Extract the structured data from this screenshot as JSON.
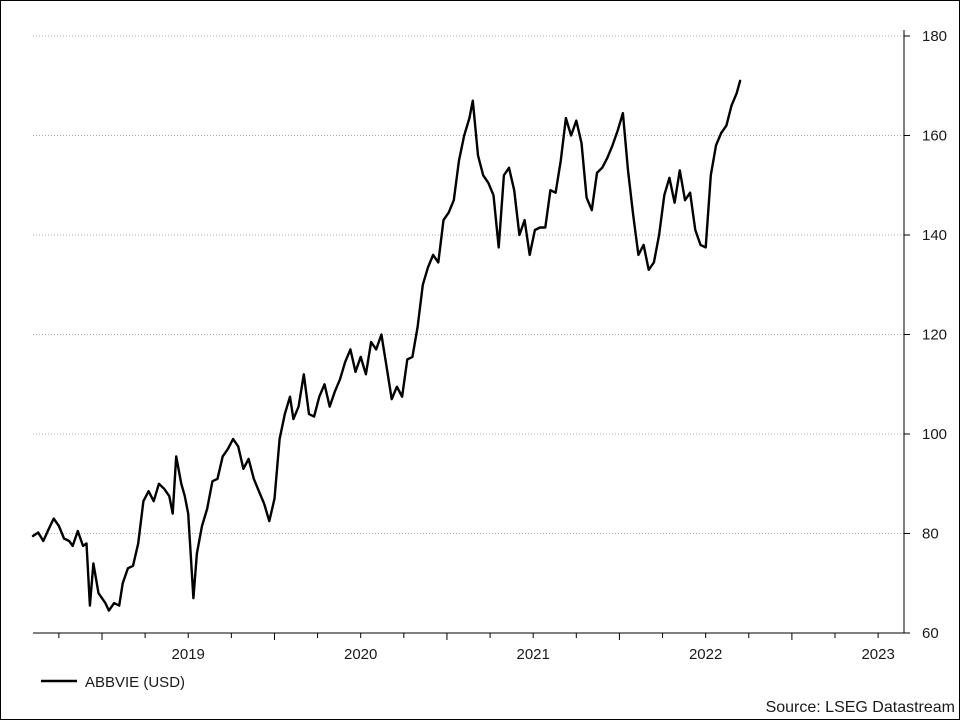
{
  "chart_data": {
    "type": "line",
    "title": "",
    "xlabel": "",
    "ylabel": "",
    "ylim": [
      60,
      180
    ],
    "yticks": [
      60,
      80,
      100,
      120,
      140,
      160,
      180
    ],
    "xlim": [
      2018.6,
      2023.65
    ],
    "year_labels": [
      {
        "label": "2019",
        "x": 2019.0
      },
      {
        "label": "2020",
        "x": 2020.0
      },
      {
        "label": "2021",
        "x": 2021.0
      },
      {
        "label": "2022",
        "x": 2022.0
      },
      {
        "label": "2023",
        "x": 2023.0
      }
    ],
    "grid": true,
    "legend": {
      "placement": "bottom-left"
    },
    "source": "Source: LSEG Datastream",
    "series": [
      {
        "name": "ABBVIE (USD)",
        "color": "#000000",
        "points": [
          [
            2018.6,
            79.5
          ],
          [
            2018.63,
            80.2
          ],
          [
            2018.66,
            78.5
          ],
          [
            2018.69,
            80.8
          ],
          [
            2018.72,
            83.0
          ],
          [
            2018.75,
            81.5
          ],
          [
            2018.78,
            79.0
          ],
          [
            2018.81,
            78.5
          ],
          [
            2018.83,
            77.5
          ],
          [
            2018.86,
            80.5
          ],
          [
            2018.89,
            77.5
          ],
          [
            2018.91,
            78.0
          ],
          [
            2018.93,
            65.5
          ],
          [
            2018.95,
            74.0
          ],
          [
            2018.98,
            68.0
          ],
          [
            2019.02,
            66.0
          ],
          [
            2019.04,
            64.5
          ],
          [
            2019.07,
            66.0
          ],
          [
            2019.1,
            65.5
          ],
          [
            2019.12,
            70.0
          ],
          [
            2019.15,
            73.0
          ],
          [
            2019.18,
            73.5
          ],
          [
            2019.21,
            78.0
          ],
          [
            2019.24,
            86.5
          ],
          [
            2019.27,
            88.5
          ],
          [
            2019.3,
            86.5
          ],
          [
            2019.33,
            90.0
          ],
          [
            2019.36,
            89.0
          ],
          [
            2019.39,
            87.5
          ],
          [
            2019.41,
            84.0
          ],
          [
            2019.43,
            95.5
          ],
          [
            2019.46,
            90.0
          ],
          [
            2019.48,
            87.5
          ],
          [
            2019.5,
            84.0
          ],
          [
            2019.53,
            67.0
          ],
          [
            2019.55,
            76.0
          ],
          [
            2019.58,
            81.5
          ],
          [
            2019.61,
            85.0
          ],
          [
            2019.64,
            90.5
          ],
          [
            2019.67,
            91.0
          ],
          [
            2019.7,
            95.5
          ],
          [
            2019.73,
            97.0
          ],
          [
            2019.76,
            99.0
          ],
          [
            2019.79,
            97.5
          ],
          [
            2019.82,
            93.0
          ],
          [
            2019.85,
            95.0
          ],
          [
            2019.88,
            91.0
          ],
          [
            2019.91,
            88.5
          ],
          [
            2019.94,
            86.0
          ],
          [
            2019.97,
            82.5
          ],
          [
            2020.0,
            87.0
          ],
          [
            2020.03,
            99.0
          ],
          [
            2020.06,
            104.0
          ],
          [
            2020.09,
            107.5
          ],
          [
            2020.11,
            103.0
          ],
          [
            2020.14,
            105.5
          ],
          [
            2020.17,
            112.0
          ],
          [
            2020.2,
            104.0
          ],
          [
            2020.23,
            103.5
          ],
          [
            2020.26,
            107.5
          ],
          [
            2020.29,
            110.0
          ],
          [
            2020.32,
            105.5
          ],
          [
            2020.35,
            108.5
          ],
          [
            2020.38,
            111.0
          ],
          [
            2020.41,
            114.5
          ],
          [
            2020.44,
            117.0
          ],
          [
            2020.47,
            112.5
          ],
          [
            2020.5,
            115.5
          ],
          [
            2020.53,
            112.0
          ],
          [
            2020.56,
            118.5
          ],
          [
            2020.59,
            117.0
          ],
          [
            2020.62,
            120.0
          ],
          [
            2020.65,
            113.5
          ],
          [
            2020.68,
            107.0
          ],
          [
            2020.71,
            109.5
          ],
          [
            2020.74,
            107.5
          ],
          [
            2020.77,
            115.0
          ],
          [
            2020.8,
            115.5
          ],
          [
            2020.83,
            121.5
          ],
          [
            2020.86,
            130.0
          ],
          [
            2020.89,
            133.5
          ],
          [
            2020.92,
            136.0
          ],
          [
            2020.95,
            134.5
          ],
          [
            2020.98,
            143.0
          ],
          [
            2021.01,
            144.5
          ],
          [
            2021.04,
            147.0
          ],
          [
            2021.07,
            155.0
          ],
          [
            2021.1,
            160.0
          ],
          [
            2021.13,
            163.5
          ],
          [
            2021.15,
            167.0
          ],
          [
            2021.18,
            156.0
          ],
          [
            2021.21,
            152.0
          ],
          [
            2021.24,
            150.5
          ],
          [
            2021.27,
            148.0
          ],
          [
            2021.3,
            137.5
          ],
          [
            2021.33,
            152.0
          ],
          [
            2021.36,
            153.5
          ],
          [
            2021.39,
            149.0
          ],
          [
            2021.42,
            140.0
          ],
          [
            2021.45,
            143.0
          ],
          [
            2021.48,
            136.0
          ],
          [
            2021.51,
            141.0
          ],
          [
            2021.54,
            141.5
          ],
          [
            2021.57,
            141.5
          ],
          [
            2021.6,
            149.0
          ],
          [
            2021.63,
            148.5
          ],
          [
            2021.66,
            155.0
          ],
          [
            2021.69,
            163.5
          ],
          [
            2021.72,
            160.0
          ],
          [
            2021.75,
            163.0
          ],
          [
            2021.78,
            158.5
          ],
          [
            2021.81,
            147.5
          ],
          [
            2021.84,
            145.0
          ],
          [
            2021.87,
            152.5
          ],
          [
            2021.9,
            153.5
          ],
          [
            2021.93,
            155.5
          ],
          [
            2021.96,
            158.0
          ],
          [
            2021.99,
            161.0
          ],
          [
            2022.02,
            164.5
          ],
          [
            2022.05,
            153.0
          ],
          [
            2022.08,
            144.0
          ],
          [
            2022.11,
            136.0
          ],
          [
            2022.14,
            138.0
          ],
          [
            2022.17,
            133.0
          ],
          [
            2022.2,
            134.5
          ],
          [
            2022.23,
            140.0
          ],
          [
            2022.26,
            148.0
          ],
          [
            2022.29,
            151.5
          ],
          [
            2022.32,
            146.5
          ],
          [
            2022.35,
            153.0
          ],
          [
            2022.38,
            147.0
          ],
          [
            2022.41,
            148.5
          ],
          [
            2022.44,
            141.0
          ],
          [
            2022.47,
            138.0
          ],
          [
            2022.5,
            137.5
          ],
          [
            2022.53,
            152.0
          ],
          [
            2022.56,
            158.0
          ],
          [
            2022.59,
            160.5
          ],
          [
            2022.62,
            162.0
          ],
          [
            2022.65,
            166.0
          ],
          [
            2022.68,
            168.5
          ],
          [
            2022.7,
            171.0
          ]
        ]
      }
    ]
  }
}
